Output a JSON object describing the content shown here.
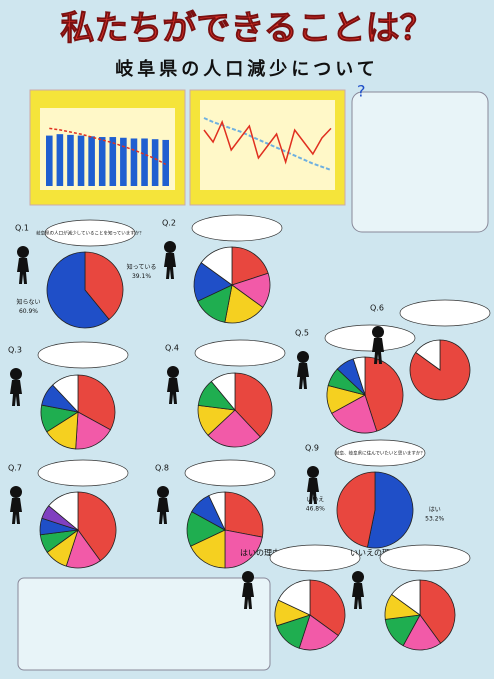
{
  "title": "私たちができることは？",
  "subtitle": "岐阜県の人口減少について",
  "bar_panel": {
    "ylim": [
      0,
      100
    ],
    "bars": [
      70,
      72,
      71,
      70,
      69,
      68,
      68,
      67,
      66,
      66,
      65,
      64
    ],
    "line": [
      80,
      78,
      75,
      72,
      68,
      64,
      60,
      55,
      50,
      44,
      38,
      30
    ],
    "bar_color": "#1f5fd0",
    "line_color": "#e03020"
  },
  "line_panel": {
    "ylim": [
      0,
      100
    ],
    "values": [
      70,
      55,
      80,
      45,
      60,
      75,
      35,
      50,
      65,
      30,
      70,
      55,
      40,
      60,
      72
    ],
    "trend": [
      85,
      80,
      76,
      72,
      68,
      63,
      58,
      53,
      48,
      43,
      38,
      33,
      28,
      24,
      20
    ],
    "line_color": "#e03020",
    "trend_color": "#6fb0e0"
  },
  "pies": [
    {
      "label": "Q.1",
      "question": "岐阜県の人口が減少していることを知っていますか？",
      "values": [
        39.1,
        60.9
      ],
      "colors": [
        "#e8473f",
        "#1f4fc8"
      ],
      "slice_labels": [
        "知っている",
        "知らない"
      ],
      "value_labels": [
        "39.1%",
        "60.9%"
      ]
    },
    {
      "label": "Q.2",
      "values": [
        20,
        15,
        18,
        15,
        17,
        15
      ],
      "colors": [
        "#e8473f",
        "#f25aa8",
        "#f5d020",
        "#1fae50",
        "#1f4fc8",
        "#ffffff"
      ]
    },
    {
      "label": "Q.3",
      "values": [
        33,
        18,
        15,
        12,
        10,
        12
      ],
      "colors": [
        "#e8473f",
        "#f25aa8",
        "#f5d020",
        "#1fae50",
        "#1f4fc8",
        "#ffffff"
      ]
    },
    {
      "label": "Q.4",
      "values": [
        38,
        25,
        14,
        12,
        11
      ],
      "colors": [
        "#e8473f",
        "#f25aa8",
        "#f5d020",
        "#1fae50",
        "#ffffff"
      ]
    },
    {
      "label": "Q.5",
      "values": [
        45,
        22,
        12,
        8,
        8,
        5
      ],
      "colors": [
        "#e8473f",
        "#f25aa8",
        "#f5d020",
        "#1fae50",
        "#1f4fc8",
        "#ffffff"
      ]
    },
    {
      "label": "Q.6",
      "values": [
        85,
        15
      ],
      "colors": [
        "#e8473f",
        "#ffffff"
      ]
    },
    {
      "label": "Q.7",
      "values": [
        40,
        15,
        10,
        8,
        7,
        6,
        14
      ],
      "colors": [
        "#e8473f",
        "#f25aa8",
        "#f5d020",
        "#1fae50",
        "#1f4fc8",
        "#8040c0",
        "#ffffff"
      ]
    },
    {
      "label": "Q.8",
      "values": [
        28,
        22,
        18,
        15,
        10,
        7
      ],
      "colors": [
        "#e8473f",
        "#f25aa8",
        "#f5d020",
        "#1fae50",
        "#1f4fc8",
        "#ffffff"
      ]
    },
    {
      "label": "Q.9",
      "question": "岐阜、岐阜県に住んでいたいと思いますか？",
      "values": [
        53.2,
        46.8
      ],
      "colors": [
        "#1f4fc8",
        "#e8473f"
      ],
      "slice_labels": [
        "はい",
        "いいえ"
      ],
      "value_labels": [
        "53.2%",
        "46.8%"
      ]
    },
    {
      "label": "はいの理由",
      "values": [
        35,
        20,
        15,
        12,
        18
      ],
      "colors": [
        "#e8473f",
        "#f25aa8",
        "#1fae50",
        "#f5d020",
        "#ffffff"
      ]
    },
    {
      "label": "いいえの理由",
      "values": [
        40,
        18,
        15,
        12,
        15
      ],
      "colors": [
        "#e8473f",
        "#f25aa8",
        "#1fae50",
        "#f5d020",
        "#ffffff"
      ]
    }
  ]
}
